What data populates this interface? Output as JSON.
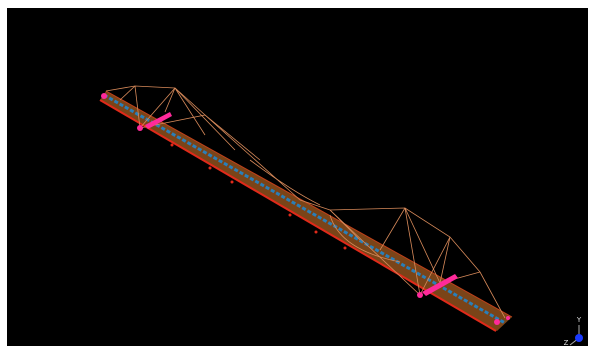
{
  "axis_triad": {
    "y_label": "Y",
    "z_label": "Z"
  }
}
